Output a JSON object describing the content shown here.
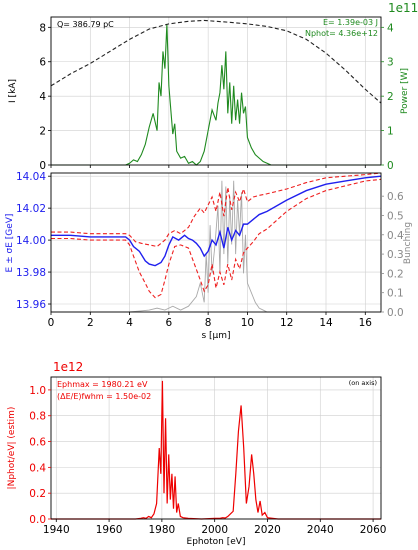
{
  "colors": {
    "current": "#222222",
    "power": "#1f8a1f",
    "energy_mean": "#2020ee",
    "energy_sigma": "#ee2020",
    "bunching": "#aaaaaa",
    "spectrum": "#ee0000",
    "grid": "#cfcfcf"
  },
  "panel1": {
    "left_ylabel": "I [kA]",
    "right_ylabel": "Power [W]",
    "charge_text": "Q= 386.79 pC",
    "energy_text": "E= 1.39e-03 J",
    "nphot_text": "Nphot= 4.36e+12",
    "right_multiplier": "1e11",
    "left_ticks": [
      "0",
      "2",
      "4",
      "6",
      "8"
    ],
    "right_ticks": [
      "0",
      "1",
      "2",
      "3",
      "4"
    ]
  },
  "panel2": {
    "left_ylabel": "E ± σE [GeV]",
    "right_ylabel": "Bunching",
    "xlabel": "s [μm]",
    "left_ticks": [
      "13.96",
      "13.98",
      "14.00",
      "14.02",
      "14.04"
    ],
    "right_ticks": [
      "0.0",
      "0.1",
      "0.2",
      "0.3",
      "0.4",
      "0.5",
      "0.6"
    ],
    "x_ticks": [
      "0",
      "2",
      "4",
      "6",
      "8",
      "10",
      "12",
      "14",
      "16"
    ]
  },
  "panel3": {
    "multiplier": "1e12",
    "ylabel": "|Nphot/eV| (estim)",
    "xlabel": "Ephoton [eV]",
    "peak_text": "Ephmax = 1980.21 eV",
    "bw_text": "(ΔE/E)fwhm = 1.50e-02",
    "on_axis_text": "(on axis)",
    "y_ticks": [
      "0.0",
      "0.2",
      "0.4",
      "0.6",
      "0.8",
      "1.0"
    ],
    "x_ticks": [
      "1940",
      "1960",
      "1980",
      "2000",
      "2020",
      "2040",
      "2060"
    ]
  },
  "chart_data": [
    {
      "type": "line",
      "xlim": [
        0,
        16.8
      ],
      "grid": true,
      "series": [
        {
          "name": "I [kA]",
          "axis": "left",
          "ylim": [
            0,
            8.6
          ],
          "style": "dashed",
          "x": [
            0,
            1,
            2,
            3,
            4,
            5,
            6,
            7,
            7.8,
            9,
            10,
            11,
            12,
            13,
            14,
            15,
            16,
            16.8
          ],
          "y": [
            4.6,
            5.3,
            5.9,
            6.6,
            7.3,
            7.9,
            8.2,
            8.35,
            8.4,
            8.3,
            8.2,
            8.05,
            7.8,
            7.3,
            6.5,
            5.5,
            4.4,
            3.6
          ]
        },
        {
          "name": "Power [W]",
          "axis": "right",
          "ylim": [
            0,
            4.3
          ],
          "scale": "1e11",
          "x": [
            0,
            3.8,
            4.0,
            4.2,
            4.4,
            4.6,
            4.8,
            5.0,
            5.2,
            5.4,
            5.5,
            5.6,
            5.7,
            5.8,
            5.9,
            6.0,
            6.1,
            6.2,
            6.3,
            6.4,
            6.6,
            6.8,
            7.0,
            7.2,
            7.4,
            7.6,
            7.8,
            8.0,
            8.2,
            8.4,
            8.5,
            8.6,
            8.7,
            8.8,
            8.9,
            9.0,
            9.1,
            9.2,
            9.3,
            9.4,
            9.5,
            9.6,
            9.7,
            9.8,
            9.9,
            10.0,
            10.2,
            10.4,
            10.6,
            10.8,
            11.2,
            16.8
          ],
          "y": [
            0,
            0,
            0.05,
            0.15,
            0.1,
            0.3,
            0.6,
            1.1,
            1.5,
            1.0,
            2.4,
            2.0,
            3.3,
            2.8,
            4.1,
            2.3,
            1.6,
            0.9,
            1.2,
            0.4,
            0.2,
            0.25,
            0.05,
            0.1,
            0.0,
            0.1,
            0.4,
            1.0,
            1.6,
            1.3,
            1.8,
            2.1,
            2.9,
            2.2,
            3.3,
            1.5,
            2.4,
            1.2,
            2.3,
            1.3,
            1.9,
            1.2,
            2.1,
            1.5,
            1.7,
            0.8,
            0.5,
            0.3,
            0.2,
            0.1,
            0.0,
            0
          ]
        }
      ]
    },
    {
      "type": "line",
      "xlim": [
        0,
        16.8
      ],
      "grid": true,
      "series": [
        {
          "name": "E mean",
          "axis": "left",
          "ylim": [
            13.955,
            14.042
          ],
          "x": [
            0,
            1,
            2,
            3,
            3.8,
            4.0,
            4.2,
            4.5,
            4.8,
            5.0,
            5.3,
            5.6,
            5.8,
            6.0,
            6.2,
            6.5,
            6.8,
            7.0,
            7.2,
            7.4,
            7.6,
            7.8,
            8.0,
            8.2,
            8.4,
            8.6,
            8.8,
            9.0,
            9.2,
            9.4,
            9.6,
            9.8,
            10.0,
            10.3,
            10.6,
            11,
            12,
            13,
            14,
            15,
            16,
            16.8
          ],
          "y": [
            14.003,
            14.003,
            14.002,
            14.002,
            14.002,
            14.0,
            13.996,
            13.993,
            13.987,
            13.985,
            13.984,
            13.986,
            13.99,
            13.997,
            14.002,
            14.0,
            14.003,
            14.001,
            14.0,
            13.998,
            13.995,
            13.99,
            13.993,
            14.0,
            13.997,
            14.005,
            13.995,
            14.008,
            14.0,
            14.006,
            14.003,
            14.01,
            14.01,
            14.013,
            14.016,
            14.018,
            14.025,
            14.031,
            14.035,
            14.037,
            14.039,
            14.04
          ]
        },
        {
          "name": "E + sigma",
          "axis": "left",
          "ylim": [
            13.955,
            14.042
          ],
          "style": "dashed",
          "x": [
            0,
            1,
            2,
            3,
            3.8,
            4.0,
            4.3,
            4.6,
            5.0,
            5.4,
            5.8,
            6.0,
            6.3,
            6.6,
            7.0,
            7.3,
            7.6,
            7.8,
            8.0,
            8.2,
            8.4,
            8.6,
            8.8,
            9.0,
            9.2,
            9.4,
            9.6,
            9.8,
            10.0,
            10.3,
            10.6,
            11,
            12,
            13,
            14,
            15,
            16,
            16.8
          ],
          "y": [
            14.005,
            14.005,
            14.004,
            14.004,
            14.004,
            14.003,
            13.999,
            13.998,
            13.997,
            13.996,
            14.0,
            14.004,
            14.006,
            14.004,
            14.008,
            14.015,
            14.02,
            14.017,
            14.022,
            14.027,
            14.018,
            14.03,
            14.015,
            14.033,
            14.019,
            14.03,
            14.024,
            14.032,
            14.024,
            14.027,
            14.028,
            14.029,
            14.032,
            14.036,
            14.039,
            14.04,
            14.041,
            14.042
          ]
        },
        {
          "name": "E - sigma",
          "axis": "left",
          "ylim": [
            13.955,
            14.042
          ],
          "style": "dashed",
          "x": [
            0,
            1,
            2,
            3,
            3.8,
            4.0,
            4.2,
            4.5,
            4.8,
            5.0,
            5.3,
            5.6,
            5.8,
            6.0,
            6.3,
            6.6,
            7.0,
            7.3,
            7.6,
            7.8,
            8.0,
            8.2,
            8.4,
            8.6,
            8.8,
            9.0,
            9.2,
            9.4,
            9.6,
            9.8,
            10.0,
            10.3,
            10.6,
            11,
            12,
            13,
            14,
            15,
            16,
            16.8
          ],
          "y": [
            14.001,
            14.001,
            14.0,
            14.0,
            14.0,
            13.997,
            13.99,
            13.98,
            13.973,
            13.968,
            13.964,
            13.966,
            13.975,
            13.985,
            13.996,
            13.997,
            13.995,
            13.985,
            13.975,
            13.968,
            13.972,
            13.985,
            13.97,
            13.98,
            13.972,
            13.985,
            13.975,
            13.988,
            13.982,
            13.992,
            13.995,
            13.999,
            14.004,
            14.007,
            14.018,
            14.026,
            14.031,
            14.034,
            14.037,
            14.038
          ]
        },
        {
          "name": "Bunching",
          "axis": "right",
          "ylim": [
            0,
            0.72
          ],
          "x": [
            0,
            4.0,
            4.5,
            5.0,
            5.4,
            5.8,
            6.2,
            6.6,
            7.0,
            7.4,
            7.6,
            7.8,
            7.9,
            8.0,
            8.1,
            8.2,
            8.35,
            8.5,
            8.6,
            8.7,
            8.8,
            8.9,
            9.0,
            9.1,
            9.2,
            9.3,
            9.4,
            9.5,
            9.6,
            9.7,
            9.8,
            9.9,
            10.0,
            10.2,
            10.4,
            10.6,
            10.8,
            11,
            16.8
          ],
          "y": [
            0,
            0.0,
            0.005,
            0.01,
            0.02,
            0.01,
            0.03,
            0.01,
            0.03,
            0.08,
            0.15,
            0.05,
            0.3,
            0.1,
            0.45,
            0.2,
            0.35,
            0.55,
            0.2,
            0.68,
            0.3,
            0.65,
            0.25,
            0.6,
            0.35,
            0.68,
            0.3,
            0.58,
            0.4,
            0.62,
            0.2,
            0.4,
            0.15,
            0.1,
            0.05,
            0.02,
            0.01,
            0.0,
            0
          ]
        }
      ]
    },
    {
      "type": "line",
      "xlim": [
        1938,
        2063
      ],
      "ylim": [
        0,
        1.1
      ],
      "scale": "1e12",
      "grid": true,
      "series": [
        {
          "name": "spectrum",
          "x": [
            1938,
            1970,
            1972,
            1973,
            1974,
            1975,
            1976,
            1977,
            1978,
            1979,
            1979.6,
            1980.2,
            1980.8,
            1981.4,
            1982,
            1982.6,
            1983.2,
            1983.8,
            1984.4,
            1985,
            1985.6,
            1986.2,
            1987,
            1988,
            1990,
            1995,
            2000,
            2002,
            2003,
            2004,
            2005,
            2006,
            2007,
            2008,
            2009,
            2010,
            2011,
            2012,
            2013,
            2014,
            2014.8,
            2015.6,
            2016.4,
            2017.2,
            2018,
            2019,
            2020,
            2022,
            2024,
            2063
          ],
          "y": [
            0,
            0,
            0.005,
            0.01,
            0.005,
            0.02,
            0.01,
            0.04,
            0.12,
            0.55,
            0.35,
            1.07,
            0.2,
            0.78,
            0.12,
            0.5,
            0.15,
            0.35,
            0.08,
            0.33,
            0.05,
            0.12,
            0.02,
            0.01,
            0.005,
            0.0,
            0.005,
            0.005,
            0.01,
            0.008,
            0.02,
            0.04,
            0.06,
            0.35,
            0.68,
            0.88,
            0.55,
            0.12,
            0.25,
            0.5,
            0.35,
            0.15,
            0.05,
            0.14,
            0.03,
            0.05,
            0.01,
            0.005,
            0.0,
            0
          ]
        }
      ]
    }
  ]
}
